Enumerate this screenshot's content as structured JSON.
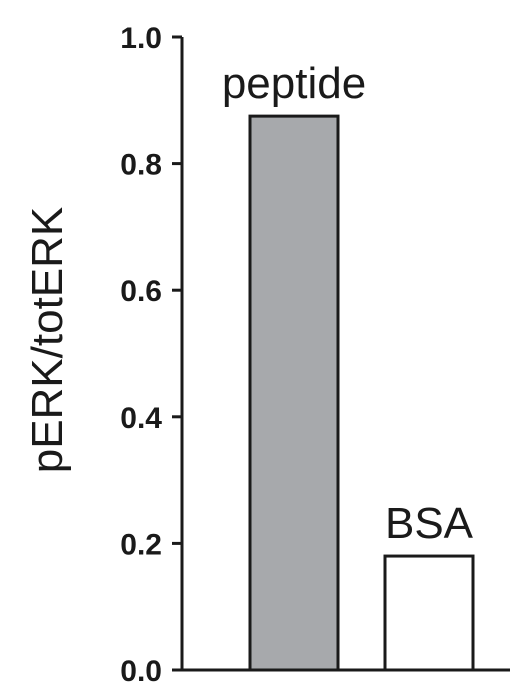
{
  "chart_data": {
    "type": "bar",
    "title": "",
    "xlabel": "",
    "ylabel": "pERK/totERK",
    "categories": [
      "peptide",
      "BSA"
    ],
    "values": [
      0.875,
      0.18
    ],
    "bar_colors": [
      "#a7a9ac",
      "#ffffff"
    ],
    "bar_edge_color": "#1a1a1a",
    "ylim": [
      0.0,
      1.0
    ],
    "yticks": [
      "0.0",
      "0.2",
      "0.4",
      "0.6",
      "0.8",
      "1.0"
    ],
    "grid": false,
    "legend": "none"
  }
}
